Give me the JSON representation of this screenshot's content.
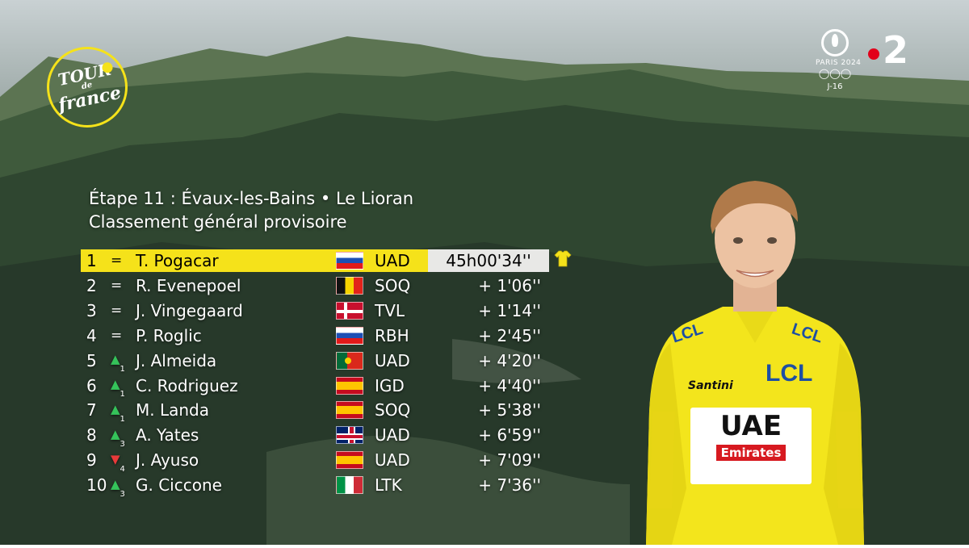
{
  "branding": {
    "tdf_logo_lines": [
      "TOUR",
      "de",
      "france"
    ],
    "paris_text": "PARIS 2024",
    "olympic_countdown": "J-16",
    "channel_number": "2",
    "colors": {
      "tdf_yellow": "#f5e21a",
      "france2_red": "#e2001a"
    }
  },
  "header": {
    "stage_title": "Étape 11 : Évaux-les-Bains •  Le Lioran",
    "subtitle": "Classement général provisoire"
  },
  "standings": [
    {
      "rank": "1",
      "move": "=",
      "move_dir": "same",
      "move_n": "",
      "rider": "T. Pogacar",
      "flag": "svn",
      "team": "UAD",
      "time": "45h00'34''",
      "leader": true
    },
    {
      "rank": "2",
      "move": "=",
      "move_dir": "same",
      "move_n": "",
      "rider": "R. Evenepoel",
      "flag": "bel",
      "team": "SOQ",
      "time": "+ 1'06''"
    },
    {
      "rank": "3",
      "move": "=",
      "move_dir": "same",
      "move_n": "",
      "rider": "J. Vingegaard",
      "flag": "den",
      "team": "TVL",
      "time": "+ 1'14''"
    },
    {
      "rank": "4",
      "move": "=",
      "move_dir": "same",
      "move_n": "",
      "rider": "P. Roglic",
      "flag": "svn",
      "team": "RBH",
      "time": "+ 2'45''"
    },
    {
      "rank": "5",
      "move": "▲",
      "move_dir": "up",
      "move_n": "1",
      "rider": "J. Almeida",
      "flag": "por",
      "team": "UAD",
      "time": "+ 4'20''"
    },
    {
      "rank": "6",
      "move": "▲",
      "move_dir": "up",
      "move_n": "1",
      "rider": "C. Rodriguez",
      "flag": "esp",
      "team": "IGD",
      "time": "+ 4'40''"
    },
    {
      "rank": "7",
      "move": "▲",
      "move_dir": "up",
      "move_n": "1",
      "rider": "M. Landa",
      "flag": "esp",
      "team": "SOQ",
      "time": "+ 5'38''"
    },
    {
      "rank": "8",
      "move": "▲",
      "move_dir": "up",
      "move_n": "3",
      "rider": "A. Yates",
      "flag": "gbr",
      "team": "UAD",
      "time": "+ 6'59''"
    },
    {
      "rank": "9",
      "move": "▼",
      "move_dir": "down",
      "move_n": "4",
      "rider": "J. Ayuso",
      "flag": "esp",
      "team": "UAD",
      "time": "+ 7'09''"
    },
    {
      "rank": "10",
      "move": "▲",
      "move_dir": "up",
      "move_n": "3",
      "rider": "G. Ciccone",
      "flag": "ita",
      "team": "LTK",
      "time": "+ 7'36''"
    }
  ],
  "jersey": {
    "sponsor_main": "UAE",
    "sponsor_sub": "Emirates",
    "lcl": "LCL",
    "santini": "Santini"
  }
}
